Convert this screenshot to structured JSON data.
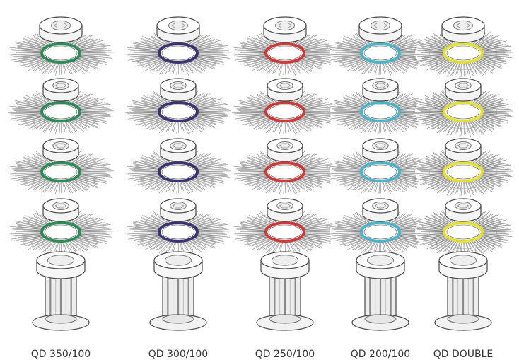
{
  "stacks": [
    {
      "label": "QD 350/100",
      "ring_color": "#2e8b57",
      "disc_count": 4
    },
    {
      "label": "QD 300/100",
      "ring_color": "#3a3570",
      "disc_count": 4
    },
    {
      "label": "QD 250/100",
      "ring_color": "#cc3a3a",
      "disc_count": 4
    },
    {
      "label": "QD 200/100",
      "ring_color": "#4fb3c8",
      "disc_count": 4
    },
    {
      "label": "QD DOUBLE",
      "ring_color": "#e2df3a",
      "disc_count": 4
    }
  ],
  "colors": {
    "bristle": "#6f6f6f",
    "outline": "#4a4a4a",
    "part_fill": "#f4f4f4"
  }
}
